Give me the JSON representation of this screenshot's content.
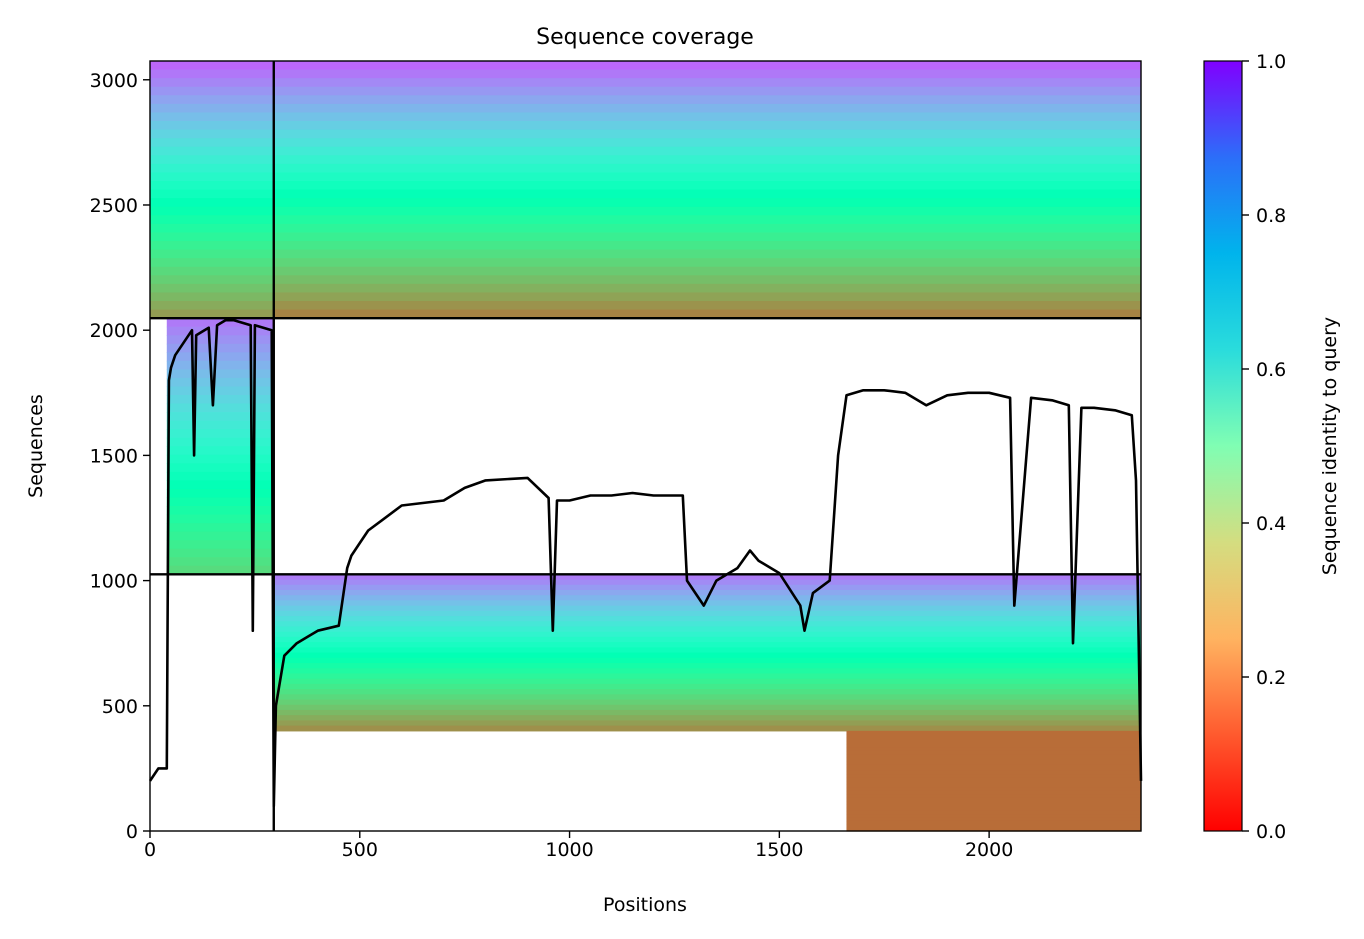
{
  "chart_data": {
    "type": "heatmap",
    "title": "Sequence coverage",
    "xlabel": "Positions",
    "ylabel": "Sequences",
    "xlim": [
      0,
      2362
    ],
    "ylim": [
      0,
      3075
    ],
    "xticks": [
      0,
      500,
      1000,
      1500,
      2000
    ],
    "yticks": [
      0,
      500,
      1000,
      1500,
      2000,
      2500,
      3000
    ],
    "grid": false,
    "legend": "none",
    "colorbar": {
      "label": "Sequence identity to query",
      "colormap": "rainbow_r",
      "range": [
        0.0,
        1.0
      ],
      "ticks": [
        "0.0",
        "0.2",
        "0.4",
        "0.6",
        "0.8",
        "1.0"
      ]
    },
    "separators": {
      "vertical_x": 295,
      "horizontal_y": [
        1025,
        2048
      ]
    },
    "blocks": [
      {
        "x0": 0,
        "x1": 295,
        "y0": 2048,
        "y1": 3075,
        "ident_top": 0.88,
        "ident_bottom": 0.2
      },
      {
        "x0": 295,
        "x1": 2362,
        "y0": 2048,
        "y1": 3075,
        "ident_top": 0.88,
        "ident_bottom": 0.16
      },
      {
        "x0": 40,
        "x1": 295,
        "y0": 1025,
        "y1": 2048,
        "ident_top": 0.85,
        "ident_bottom": 0.32
      },
      {
        "x0": 295,
        "x1": 2362,
        "y0": 400,
        "y1": 1025,
        "ident_top": 0.85,
        "ident_bottom": 0.18
      },
      {
        "x0": 1660,
        "x1": 2362,
        "y0": 0,
        "y1": 400,
        "ident_top": 0.14,
        "ident_bottom": 0.14
      }
    ],
    "series": [
      {
        "x": [
          0,
          20,
          40,
          45,
          50,
          60,
          80,
          100,
          105,
          110,
          130,
          140,
          150,
          160,
          180,
          200,
          220,
          240,
          245,
          250,
          270,
          290,
          295,
          300,
          320,
          350,
          400,
          450,
          470,
          480,
          500,
          520,
          600,
          700,
          750,
          800,
          900,
          950,
          960,
          970,
          1000,
          1050,
          1100,
          1150,
          1200,
          1270,
          1280,
          1300,
          1320,
          1350,
          1400,
          1430,
          1450,
          1500,
          1550,
          1560,
          1580,
          1620,
          1640,
          1660,
          1700,
          1750,
          1800,
          1850,
          1900,
          1950,
          2000,
          2050,
          2060,
          2100,
          2150,
          2190,
          2200,
          2220,
          2250,
          2300,
          2340,
          2350,
          2362
        ],
        "values": [
          200,
          250,
          250,
          1800,
          1850,
          1900,
          1950,
          2000,
          1500,
          1980,
          2000,
          2010,
          1700,
          2020,
          2040,
          2040,
          2030,
          2020,
          800,
          2020,
          2010,
          2000,
          100,
          500,
          700,
          750,
          800,
          820,
          1050,
          1100,
          1150,
          1200,
          1300,
          1320,
          1370,
          1400,
          1410,
          1330,
          800,
          1320,
          1320,
          1340,
          1340,
          1350,
          1340,
          1340,
          1000,
          950,
          900,
          1000,
          1050,
          1120,
          1080,
          1030,
          900,
          800,
          950,
          1000,
          1500,
          1740,
          1760,
          1760,
          1750,
          1700,
          1740,
          1750,
          1750,
          1730,
          900,
          1730,
          1720,
          1700,
          750,
          1690,
          1690,
          1680,
          1660,
          1400,
          200
        ]
      }
    ]
  }
}
